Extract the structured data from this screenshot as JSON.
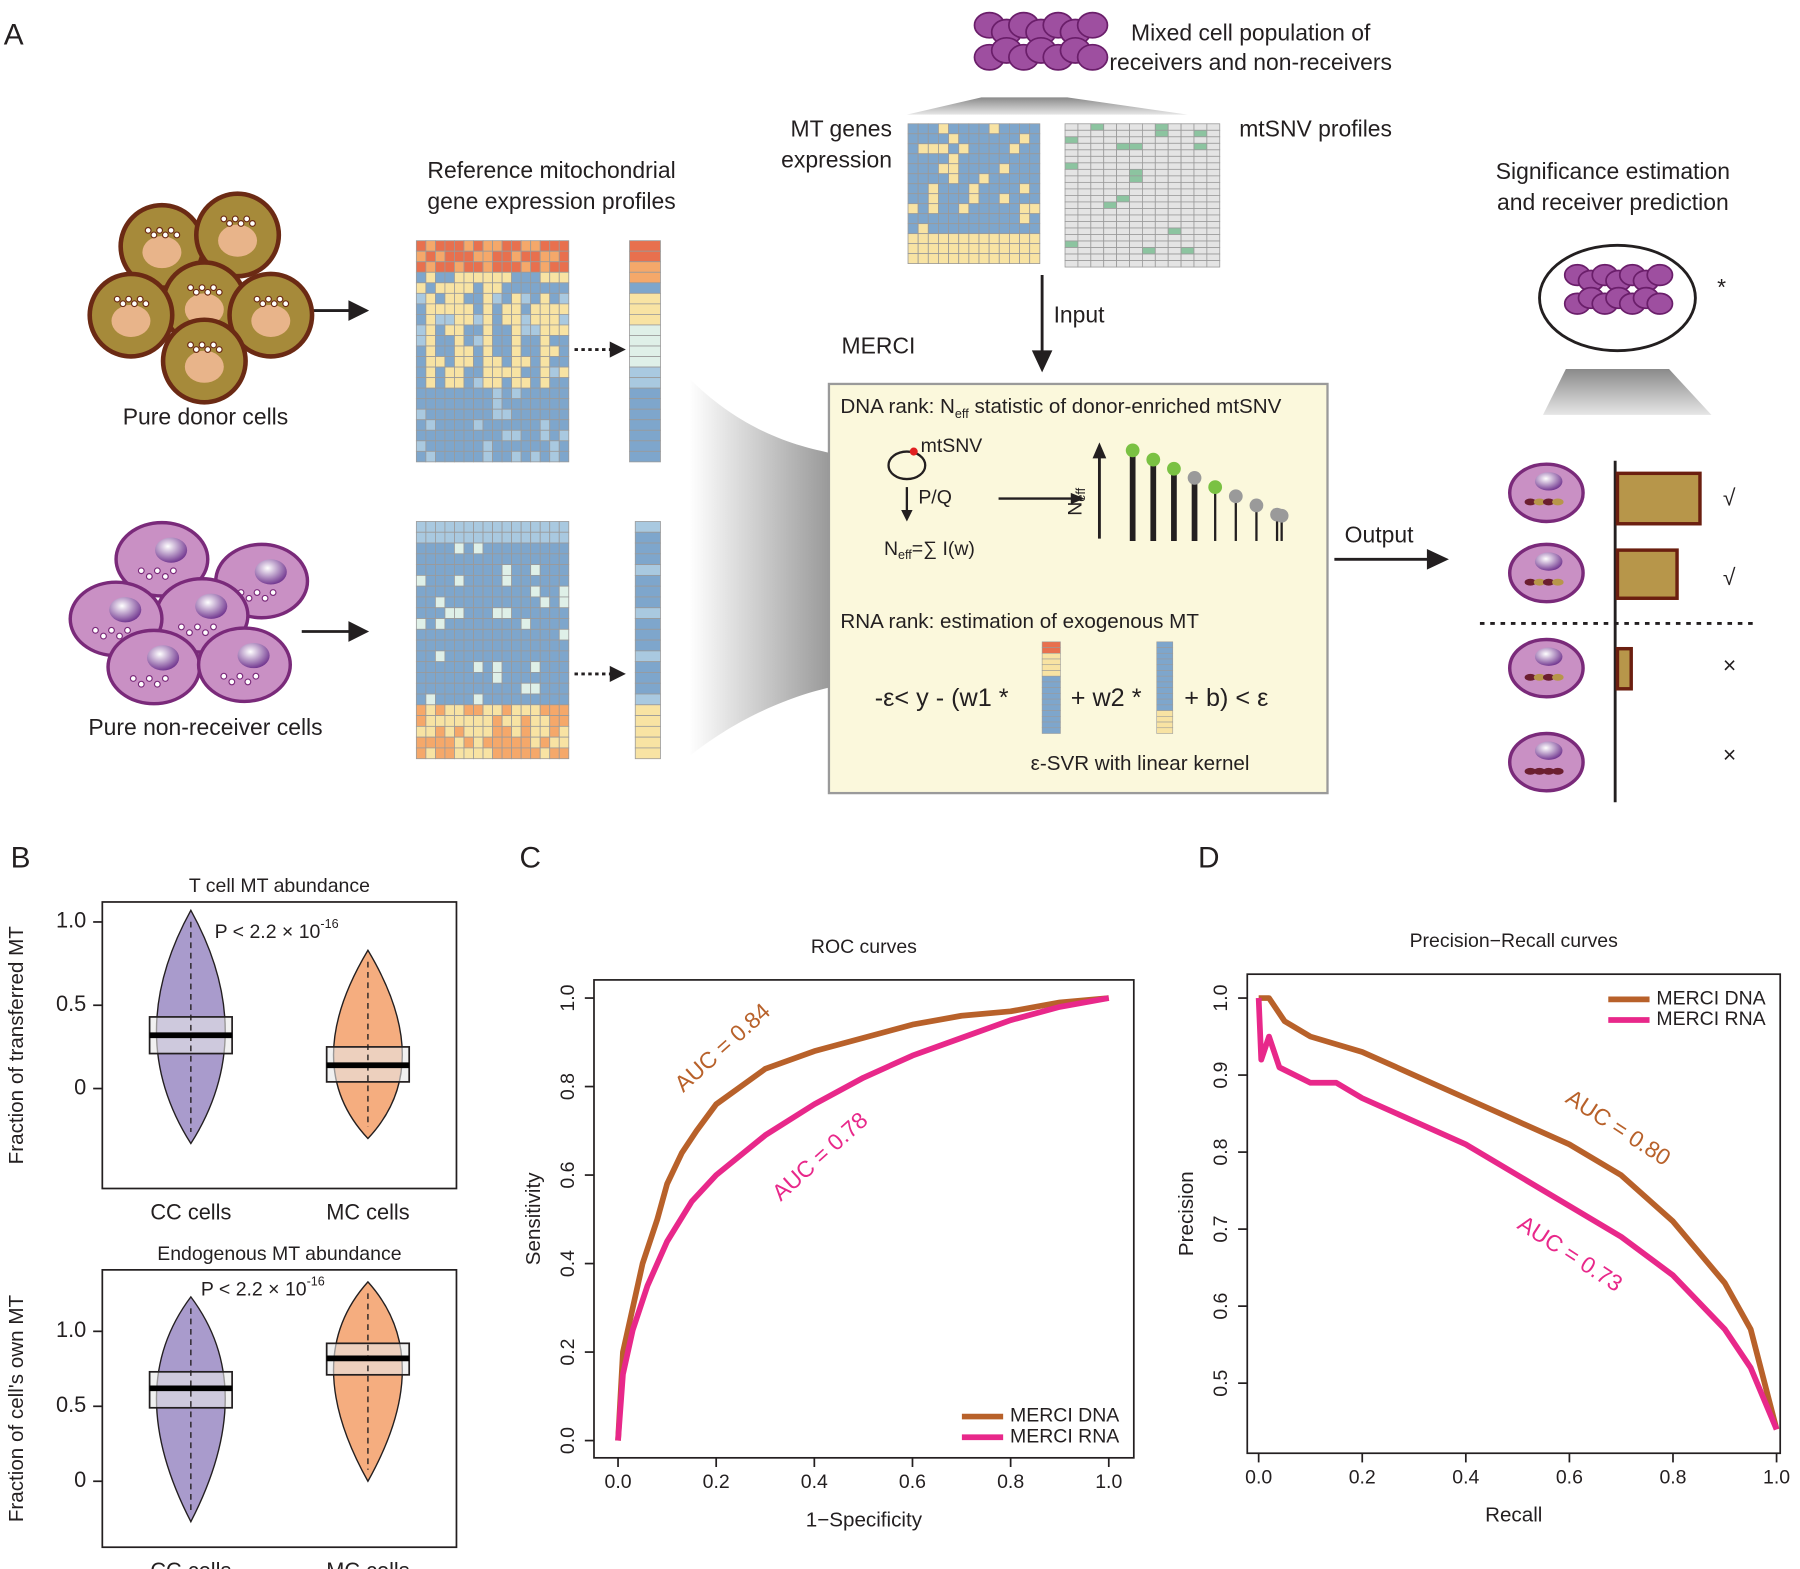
{
  "panel_labels": [
    "A",
    "B",
    "C",
    "D"
  ],
  "diagram": {
    "mixed_title": [
      "Mixed cell population of",
      "receivers and non-receivers"
    ],
    "mt_expression": [
      "MT genes",
      "expression"
    ],
    "mtsnv_profiles": "mtSNV profiles",
    "reference_title": [
      "Reference mitochondrial",
      "gene expression profiles"
    ],
    "donor_label": "Pure donor cells",
    "nonreceiver_label": "Pure non-receiver cells",
    "input": "Input",
    "merci": "MERCI",
    "significance_title": [
      "Significance estimation",
      "and receiver prediction"
    ],
    "star": "*",
    "output": "Output",
    "marks": [
      "√",
      "√",
      "×",
      "×"
    ],
    "dna_rank": [
      "DNA rank: N",
      "eff",
      " statistic of donor-enriched mtSNV"
    ],
    "mtsnv": "mtSNV",
    "pq": "P/Q",
    "neff_formula": [
      "N",
      "eff",
      "=∑ I(w)"
    ],
    "neff_axis": [
      "N",
      "eff"
    ],
    "rna_rank": "RNA rank: estimation of exogenous MT",
    "svr_formula": [
      "-ε< y - (w1 *",
      "+ w2 *",
      "+  b) < ε"
    ],
    "svr_caption": "ε-SVR  with linear kernel"
  },
  "chart_data": [
    {
      "type": "violin",
      "title": "T cell MT abundance",
      "y_label": "Fraction of transferred MT",
      "categories": [
        "CC cells",
        "MC  cells"
      ],
      "boxes": [
        {
          "min": -0.33,
          "q1": 0.21,
          "median": 0.32,
          "q3": 0.43,
          "max": 1.07,
          "color": "#a99bcc"
        },
        {
          "min": -0.3,
          "q1": 0.04,
          "median": 0.14,
          "q3": 0.25,
          "max": 0.83,
          "color": "#f5ad7f"
        }
      ],
      "annotations": [
        "P <  2.2 × 10",
        "-16"
      ],
      "ylim": [
        -0.6,
        1.12
      ],
      "yticks": [
        0,
        0.5,
        {
          "value": 1,
          "label": "1.0"
        }
      ]
    },
    {
      "type": "violin",
      "title": "Endogenous MT abundance",
      "y_label": "Fraction of cell's own MT",
      "categories": [
        "CC cells",
        "MC  cells"
      ],
      "boxes": [
        {
          "min": -0.27,
          "q1": 0.49,
          "median": 0.62,
          "q3": 0.73,
          "max": 1.23,
          "color": "#a99bcc"
        },
        {
          "min": 0.0,
          "q1": 0.71,
          "median": 0.82,
          "q3": 0.92,
          "max": 1.33,
          "color": "#f5ad7f"
        }
      ],
      "annotations": [
        "P <  2.2 × 10",
        "-16"
      ],
      "ylim": [
        -0.44,
        1.41
      ],
      "yticks": [
        0,
        0.5,
        {
          "value": 1,
          "label": "1.0"
        }
      ]
    },
    {
      "type": "line",
      "title": "ROC curves",
      "x_label": "1−Specificity",
      "y_label": "Sensitivity",
      "series": [
        {
          "name": "MERCI DNA",
          "color": "#b8612a",
          "x": [
            0,
            0.01,
            0.03,
            0.05,
            0.08,
            0.1,
            0.13,
            0.16,
            0.2,
            0.25,
            0.3,
            0.4,
            0.5,
            0.6,
            0.7,
            0.8,
            0.9,
            1
          ],
          "values": [
            0,
            0.2,
            0.3,
            0.4,
            0.5,
            0.58,
            0.65,
            0.7,
            0.76,
            0.8,
            0.84,
            0.88,
            0.91,
            0.94,
            0.96,
            0.97,
            0.99,
            1
          ]
        },
        {
          "name": "MERCI RNA",
          "color": "#e8288a",
          "x": [
            0,
            0.01,
            0.03,
            0.06,
            0.1,
            0.15,
            0.2,
            0.3,
            0.4,
            0.5,
            0.6,
            0.7,
            0.8,
            0.9,
            1
          ],
          "values": [
            0,
            0.15,
            0.25,
            0.35,
            0.45,
            0.54,
            0.6,
            0.69,
            0.76,
            0.82,
            0.87,
            0.91,
            0.95,
            0.98,
            1
          ]
        }
      ],
      "annotations": [
        "AUC = 0.84",
        "AUC = 0.78"
      ],
      "legend": "bottom-right",
      "xlim": [
        -0.049,
        1.051
      ],
      "xticks": [
        {
          "value": 0,
          "label": "0.0"
        },
        0.2,
        0.4,
        0.6,
        0.8,
        {
          "value": 1,
          "label": "1.0"
        }
      ],
      "ylim": [
        -0.039,
        1.041
      ],
      "yticks": [
        {
          "value": 0,
          "label": "0.0"
        },
        0.2,
        0.4,
        0.6,
        0.8,
        {
          "value": 1,
          "label": "1.0"
        }
      ]
    },
    {
      "type": "line",
      "title": "Precision−Recall curves",
      "x_label": "Recall",
      "y_label": "Precision",
      "series": [
        {
          "name": "MERCI DNA",
          "color": "#b8612a",
          "x": [
            0,
            0.02,
            0.05,
            0.1,
            0.2,
            0.3,
            0.4,
            0.5,
            0.6,
            0.7,
            0.8,
            0.9,
            0.95,
            1
          ],
          "values": [
            1,
            1,
            0.97,
            0.95,
            0.93,
            0.9,
            0.87,
            0.84,
            0.81,
            0.77,
            0.71,
            0.63,
            0.57,
            0.44
          ]
        },
        {
          "name": "MERCI RNA",
          "color": "#e8288a",
          "x": [
            0,
            0.005,
            0.02,
            0.04,
            0.1,
            0.15,
            0.2,
            0.3,
            0.4,
            0.5,
            0.6,
            0.7,
            0.8,
            0.9,
            0.95,
            1
          ],
          "values": [
            1,
            0.92,
            0.95,
            0.91,
            0.89,
            0.89,
            0.87,
            0.84,
            0.81,
            0.77,
            0.73,
            0.69,
            0.64,
            0.57,
            0.52,
            0.44
          ]
        }
      ],
      "annotations": [
        "AUC = 0.80",
        "AUC = 0.73"
      ],
      "legend": "top-right",
      "xlim": [
        -0.022,
        1.007
      ],
      "xticks": [
        {
          "value": 0,
          "label": "0.0"
        },
        0.2,
        0.4,
        0.6,
        0.8,
        {
          "value": 1,
          "label": "1.0"
        }
      ],
      "ylim": [
        0.409,
        1.031
      ],
      "yticks": [
        0.5,
        0.6,
        0.7,
        0.8,
        0.9,
        {
          "value": 1,
          "label": "1.0"
        }
      ]
    }
  ]
}
